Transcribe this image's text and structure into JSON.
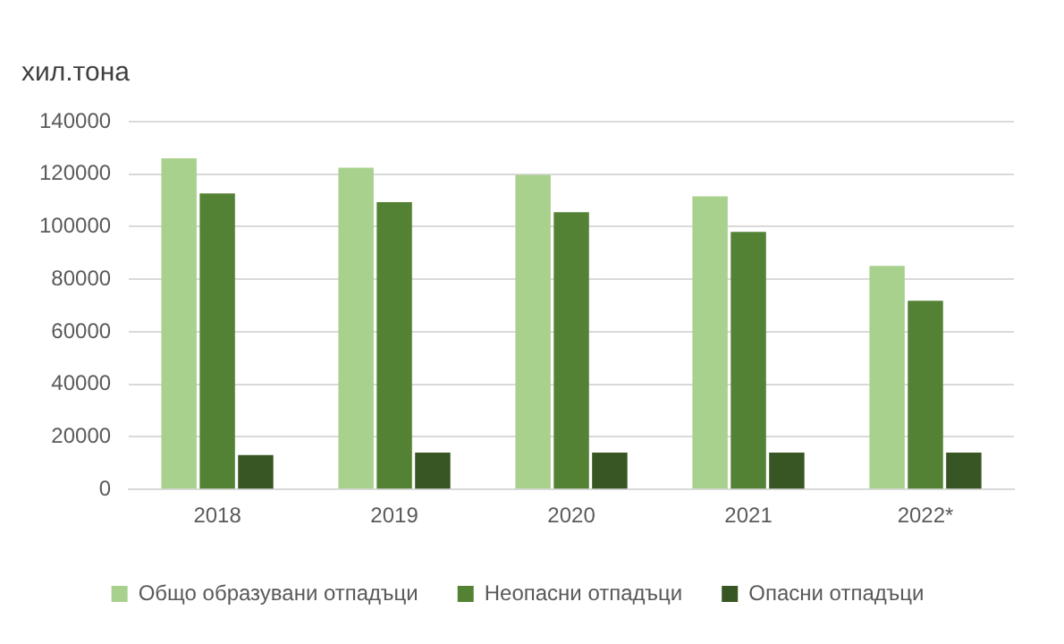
{
  "chart_data": {
    "type": "bar",
    "ylabel": "хил.тона",
    "categories": [
      "2018",
      "2019",
      "2020",
      "2021",
      "2022*"
    ],
    "series": [
      {
        "name": "Общо образувани отпадъци",
        "color": "#a9d18e",
        "values": [
          126000,
          122500,
          119700,
          111600,
          85100
        ]
      },
      {
        "name": "Неопасни отпадъци",
        "color": "#548235",
        "values": [
          112700,
          109400,
          105500,
          98000,
          71800
        ]
      },
      {
        "name": "Опасни отпадъци",
        "color": "#375623",
        "values": [
          13100,
          14000,
          14000,
          14000,
          14000
        ]
      }
    ],
    "ylim": [
      0,
      140000
    ],
    "yticks": [
      0,
      20000,
      40000,
      60000,
      80000,
      100000,
      120000,
      140000
    ],
    "grid": "y",
    "legend": "bottom"
  }
}
